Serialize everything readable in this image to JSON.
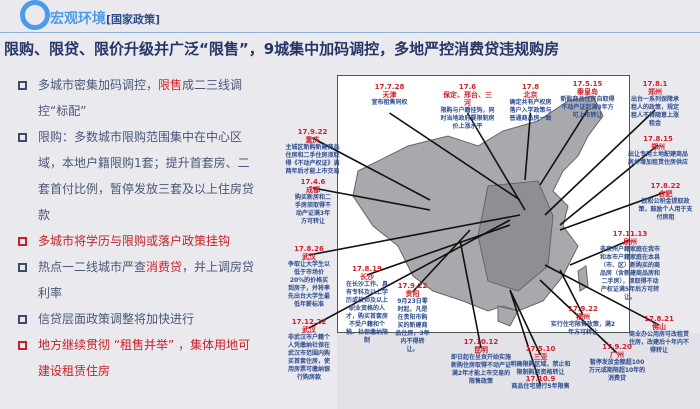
{
  "header": {
    "title": "宏观环境",
    "subtitle": "[国家政策]"
  },
  "headline": "限购、限贷、限价升级并广泛“限售”，9城集中加码调控，多地严控消费贷违规购房",
  "bullets": [
    {
      "parts": [
        "多城市密集加码调控，",
        "限售",
        "成二三线调控“标配”"
      ],
      "red": false
    },
    {
      "parts": [
        "限购：多数城市限购范围集中在中心区域，本地户籍限购1套；提升首套房、二套首付比例，暂停发放三套及以上住房贷款",
        "",
        ""
      ],
      "red": false
    },
    {
      "parts": [
        "多城市将学历与限购或落户政策挂钩",
        "",
        ""
      ],
      "red": true
    },
    {
      "parts": [
        "热点一二线城市严查",
        "消费贷",
        "，并上调房贷利率"
      ],
      "red": false
    },
    {
      "parts": [
        "信贷层面政策调整将加快进行",
        "",
        ""
      ],
      "red": false
    },
    {
      "parts": [
        "地方继续贯彻 “租售并举” ，集体用地可建设租赁住房",
        "",
        ""
      ],
      "red": true
    }
  ],
  "callouts": [
    {
      "date": "17.7.28",
      "city": "天津",
      "text": "宣布租售同权"
    },
    {
      "date": "17.6",
      "city": "保定、邢台、三河",
      "text": "限购与户籍挂钩，同时当地政府要限制房价上涨水平"
    },
    {
      "date": "17.8",
      "city": "北京",
      "text": "确定共有产权房落户入学政策与普通商品房一致"
    },
    {
      "date": "17.5.15",
      "city": "秦皇岛",
      "text": "新购商品住房自取得不动产证起满3年方可上市转让"
    },
    {
      "date": "17.8.1",
      "city": "郑州",
      "text": "出台一系列保障承租人的政策，规定租人不得随意上涨租金"
    },
    {
      "date": "17.8.15",
      "city": "郑州",
      "text": "出让专用土地配建商品房并增加租赁住房供应"
    },
    {
      "date": "17.9.22",
      "city": "重庆",
      "text": "主城区新购新建商品住房和二手住房须取得《不动产权证》满两年后才能上市交易"
    },
    {
      "date": "17.4.6",
      "city": "成都",
      "text": "购买新房和二手房须取得不动产证满3年方可转让"
    },
    {
      "date": "17.8.22",
      "city": "合肥",
      "text": "放松公积金提取政策，鼓励个人用于支付房租"
    },
    {
      "date": "17.11.13",
      "city": "泉州",
      "text": "非泉州户籍家庭在我市和本市户籍家庭在本县（市、区）新购买的商品房（含新建商品房和二手房），须取得不动产权证满5年后方可转让。"
    },
    {
      "date": "17.8.26",
      "city": "武汉",
      "text": "争取让大学生以低于市场价20%的价格买到房子，并将率先出台大学生最低年薪标准"
    },
    {
      "date": "17.12.22",
      "city": "武汉",
      "text": "非武汉市户籍个人凭缴纳社保在武汉市范围内购买首套住房，使用房票可缴纳银行购房款"
    },
    {
      "date": "17.8.19",
      "city": "长沙",
      "text": "在长沙工作、具有专科及以上学历或技师及以上职业资格的人才，购买首套房不受户籍和个税、社保缴纳限制"
    },
    {
      "date": "17.9.22",
      "city": "贵阳",
      "text": "9月23日零时起，凡是在贵阳市购买的新建商品住房，3年内不得转让。"
    },
    {
      "date": "17.10.12",
      "city": "昆明",
      "text": "即日起在呈贡开始实施新购住房取得不动产证满2年才能上市交易的限售政策"
    },
    {
      "date": "17.5.10",
      "city": "三亚",
      "text": "明确限购区域，禁止和限制购房资格转让"
    },
    {
      "date": "17.10.9",
      "city": "",
      "text": "商品住宅施行5年限售"
    },
    {
      "date": "17.9.22",
      "city": "福州",
      "text": "实行住宅限售政策，满2年方可转让"
    },
    {
      "date": "17.8.21",
      "city": "佛山",
      "text": "商业办公用房可改租赁住房，改建后十年内不得转让"
    },
    {
      "date": "17.9.20",
      "city": "广州",
      "text": "暂停发放金额超100万元或期限超10年的消费贷"
    }
  ],
  "colors": {
    "accent": "#4a9be8",
    "headline": "#253566",
    "highlight": "#d81e28",
    "map": "#a9a9ad"
  }
}
